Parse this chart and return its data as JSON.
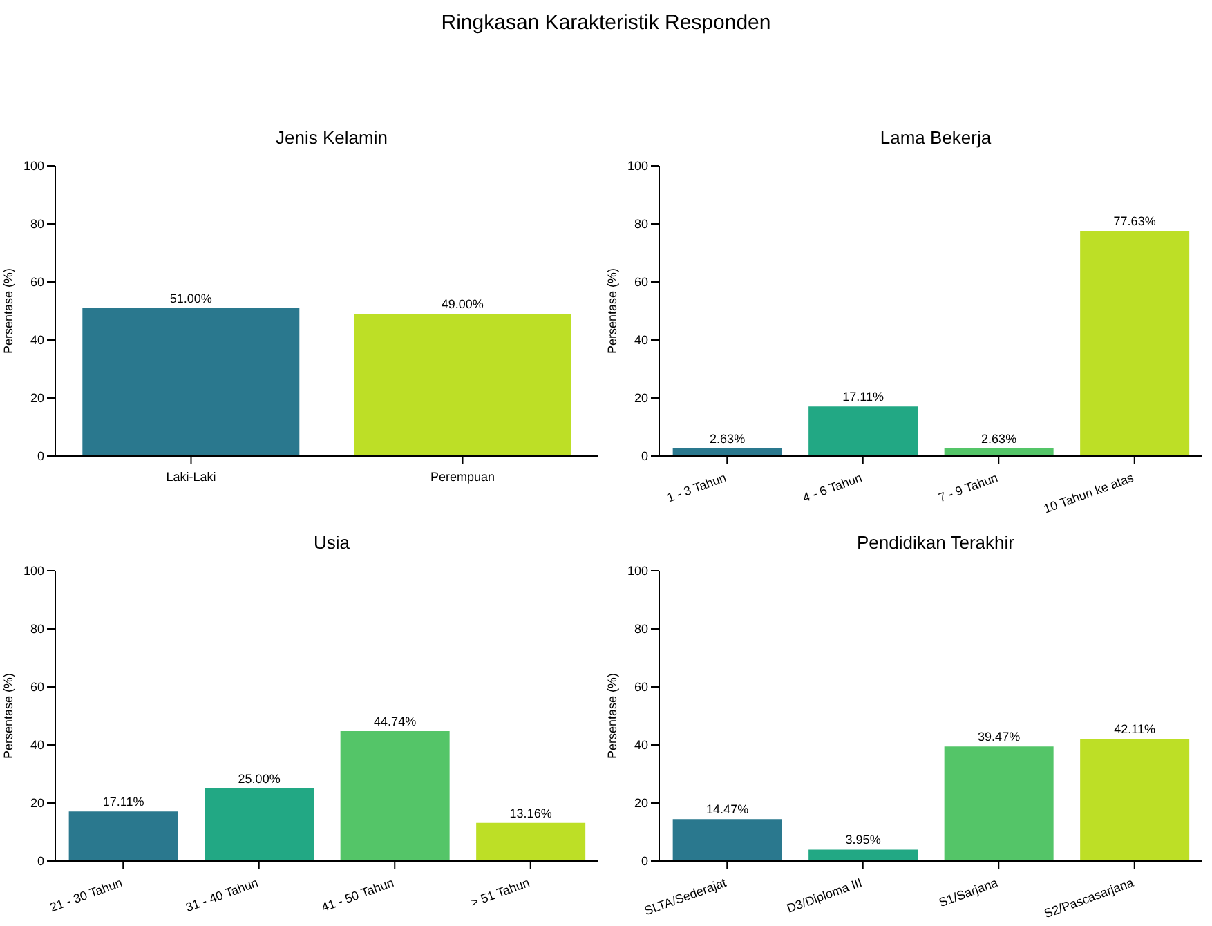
{
  "chart_data": [
    {
      "type": "bar",
      "title": "Jenis Kelamin",
      "annotations": [
        "Ringkasan Karakteristik Responden"
      ],
      "ylabel": "Persentase (%)",
      "categories": [
        "Laki-Laki",
        "Perempuan"
      ],
      "values": [
        51.0,
        49.0
      ],
      "colors": [
        "#2a788e",
        "#bddf26"
      ],
      "value_labels": [
        "51.00%",
        "49.00%"
      ],
      "ylim": [
        0,
        100
      ],
      "yticks": [
        0,
        20,
        40,
        60,
        80,
        100
      ],
      "grid": false,
      "legend": false
    },
    {
      "type": "bar",
      "title": "Lama Bekerja",
      "ylabel": "Persentase (%)",
      "categories": [
        "1 - 3 Tahun",
        "4 - 6 Tahun",
        "7 - 9 Tahun",
        "10 Tahun ke atas"
      ],
      "values": [
        2.63,
        17.11,
        2.63,
        77.63
      ],
      "colors": [
        "#2a788e",
        "#22a884",
        "#54c568",
        "#bddf26"
      ],
      "value_labels": [
        "2.63%",
        "17.11%",
        "2.63%",
        "77.63%"
      ],
      "ylim": [
        0,
        100
      ],
      "yticks": [
        0,
        20,
        40,
        60,
        80,
        100
      ],
      "grid": false,
      "legend": false
    },
    {
      "type": "bar",
      "title": "Usia",
      "ylabel": "Persentase (%)",
      "categories": [
        "21 - 30 Tahun",
        "31 - 40 Tahun",
        "41 - 50 Tahun",
        "> 51 Tahun"
      ],
      "values": [
        17.11,
        25.0,
        44.74,
        13.16
      ],
      "colors": [
        "#2a788e",
        "#22a884",
        "#54c568",
        "#bddf26"
      ],
      "value_labels": [
        "17.11%",
        "25.00%",
        "44.74%",
        "13.16%"
      ],
      "ylim": [
        0,
        100
      ],
      "yticks": [
        0,
        20,
        40,
        60,
        80,
        100
      ],
      "grid": false,
      "legend": false
    },
    {
      "type": "bar",
      "title": "Pendidikan Terakhir",
      "ylabel": "Persentase (%)",
      "categories": [
        "SLTA/Sederajat",
        "D3/Diploma III",
        "S1/Sarjana",
        "S2/Pascasarjana"
      ],
      "values": [
        14.47,
        3.95,
        39.47,
        42.11
      ],
      "colors": [
        "#2a788e",
        "#22a884",
        "#54c568",
        "#bddf26"
      ],
      "value_labels": [
        "14.47%",
        "3.95%",
        "39.47%",
        "42.11%"
      ],
      "ylim": [
        0,
        100
      ],
      "yticks": [
        0,
        20,
        40,
        60,
        80,
        100
      ],
      "grid": false,
      "legend": false
    }
  ]
}
